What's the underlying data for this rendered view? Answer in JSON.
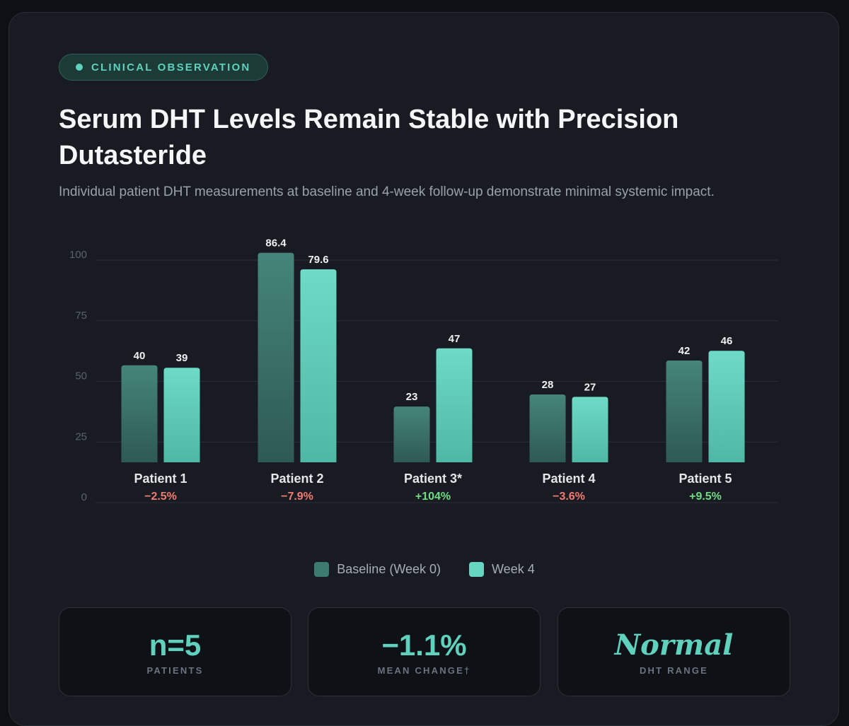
{
  "badge": {
    "label": "CLINICAL OBSERVATION"
  },
  "header": {
    "title": "Serum DHT Levels Remain Stable with Precision Dutasteride",
    "subtitle": "Individual patient DHT measurements at baseline and 4-week follow-up demonstrate minimal systemic impact."
  },
  "colors": {
    "accent": "#5fd1bd",
    "baseline_bar": "#3d7a70",
    "week4_bar": "#66d6c3",
    "negative_change": "#f07c73",
    "positive_change": "#6fdc83"
  },
  "chart_data": {
    "type": "bar",
    "title": "Serum DHT Levels Remain Stable with Precision Dutasteride",
    "categories": [
      "Patient 1",
      "Patient 2",
      "Patient 3*",
      "Patient 4",
      "Patient 5"
    ],
    "series": [
      {
        "name": "Baseline (Week 0)",
        "values": [
          40,
          86.4,
          23,
          28,
          42
        ]
      },
      {
        "name": "Week 4",
        "values": [
          39,
          79.6,
          47,
          27,
          46
        ]
      }
    ],
    "data_labels": [
      [
        "40",
        "86.4",
        "23",
        "28",
        "42"
      ],
      [
        "39",
        "79.6",
        "47",
        "27",
        "46"
      ]
    ],
    "changes": [
      "−2.5%",
      "−7.9%",
      "+104%",
      "−3.6%",
      "+9.5%"
    ],
    "yticks": [
      "0",
      "25",
      "50",
      "75",
      "100"
    ],
    "ylim": [
      0,
      100
    ],
    "grid": true,
    "legend": "bottom-center",
    "xlabel": "",
    "ylabel": ""
  },
  "stats": [
    {
      "value": "n=5",
      "label": "PATIENTS"
    },
    {
      "value": "−1.1%",
      "label": "MEAN CHANGE†"
    },
    {
      "value": "Normal",
      "label": "DHT RANGE"
    }
  ]
}
